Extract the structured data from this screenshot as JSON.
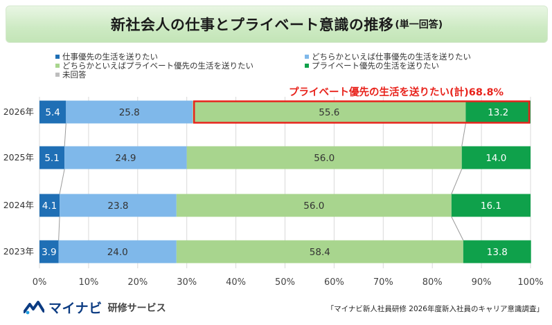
{
  "header": {
    "title": "新社会人の仕事とプライベート意識の推移",
    "subtitle": "(単一回答)"
  },
  "highlight": {
    "label": "プライベート優先の生活を送りたい(計)68.8%",
    "color": "#e8231c"
  },
  "footer": {
    "brand": "マイナビ",
    "brand_sub": "研修サービス",
    "source": "「マイナビ新人社員研修 2026年度新入社員のキャリア意識調査」"
  },
  "chart_data": {
    "type": "bar",
    "orientation": "horizontal",
    "stacked": true,
    "categories": [
      "2026年",
      "2025年",
      "2024年",
      "2023年"
    ],
    "series": [
      {
        "name": "仕事優先の生活を送りたい",
        "color": "#1f6fb5",
        "values": [
          5.4,
          5.1,
          4.1,
          3.9
        ]
      },
      {
        "name": "どちらかといえば仕事優先の生活を送りたい",
        "color": "#7fb8ea",
        "values": [
          25.8,
          24.9,
          23.8,
          24.0
        ]
      },
      {
        "name": "どちらかといえばプライベート優先の生活を送りたい",
        "color": "#a8d58e",
        "values": [
          55.6,
          56.0,
          56.0,
          58.4
        ]
      },
      {
        "name": "プライベート優先の生活を送りたい",
        "color": "#0fa14b",
        "values": [
          13.2,
          14.0,
          16.1,
          13.8
        ]
      },
      {
        "name": "未回答",
        "color": "#bdbdbd",
        "values": [
          0,
          0,
          0,
          0
        ]
      }
    ],
    "xlim": [
      0,
      100
    ],
    "xticks": [
      "0%",
      "10%",
      "20%",
      "30%",
      "40%",
      "50%",
      "60%",
      "70%",
      "80%",
      "90%",
      "100%"
    ],
    "grid": true,
    "legend": "top"
  }
}
